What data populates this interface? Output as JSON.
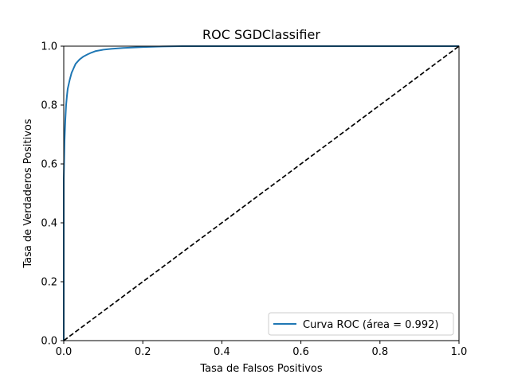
{
  "chart_data": {
    "type": "line",
    "title": "ROC SGDClassifier",
    "xlabel": "Tasa de Falsos Positivos",
    "ylabel": "Tasa de Verdaderos Positivos",
    "xlim": [
      0.0,
      1.0
    ],
    "ylim": [
      0.0,
      1.0
    ],
    "xticks": [
      "0.0",
      "0.2",
      "0.4",
      "0.6",
      "0.8",
      "1.0"
    ],
    "yticks": [
      "0.0",
      "0.2",
      "0.4",
      "0.6",
      "0.8",
      "1.0"
    ],
    "grid": false,
    "legend_position": "lower-right",
    "series": [
      {
        "name": "Curva ROC (área = 0.992)",
        "color": "#1f77b4",
        "style": "solid",
        "x": [
          0.0,
          0.0,
          0.002,
          0.004,
          0.006,
          0.008,
          0.01,
          0.015,
          0.02,
          0.025,
          0.03,
          0.04,
          0.05,
          0.06,
          0.07,
          0.08,
          0.1,
          0.12,
          0.15,
          0.2,
          0.25,
          0.3,
          0.4,
          0.6,
          0.8,
          1.0
        ],
        "y": [
          0.0,
          0.55,
          0.68,
          0.75,
          0.8,
          0.83,
          0.855,
          0.885,
          0.91,
          0.925,
          0.94,
          0.955,
          0.965,
          0.972,
          0.978,
          0.983,
          0.988,
          0.991,
          0.994,
          0.997,
          0.999,
          1.0,
          1.0,
          1.0,
          1.0,
          1.0
        ]
      },
      {
        "name": "",
        "color": "#000000",
        "style": "dashed",
        "x": [
          0.0,
          1.0
        ],
        "y": [
          0.0,
          1.0
        ]
      }
    ]
  }
}
